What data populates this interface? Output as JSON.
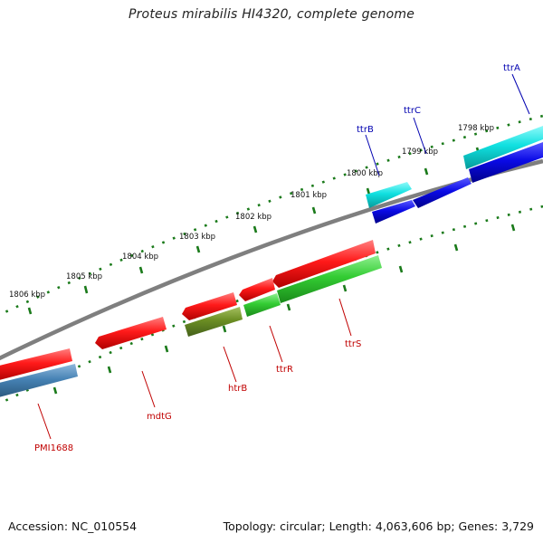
{
  "title": "Proteus mirabilis HI4320, complete genome",
  "accession_text": "Accession: NC_010554",
  "info_text": "Topology: circular; Length: 4,063,606 bp; Genes: 3,729",
  "colors": {
    "backbone": "#7f7f7f",
    "tick": "#1a7a1a",
    "forward_label": "#0000b0",
    "reverse_label": "#c00000",
    "cds_red": "#ff1a1a",
    "cds_blue": "#0a0ae6",
    "cds_cyan": "#10e0e0",
    "cds_green": "#33cc33",
    "cds_olive": "#6b8e23",
    "cds_steel": "#4682b4"
  },
  "scale_labels": [
    "1806 kbp",
    "1805 kbp",
    "1804 kbp",
    "1803 kbp",
    "1802 kbp",
    "1801 kbp",
    "1800 kbp",
    "1799 kbp",
    "1798 kbp"
  ],
  "genes": [
    {
      "label": "ttrA",
      "strand": "forward",
      "color": "cds_cyan"
    },
    {
      "label": "ttrC",
      "strand": "forward",
      "color": "cds_blue"
    },
    {
      "label": "ttrB",
      "strand": "forward",
      "color": "cds_cyan"
    },
    {
      "label": "ttrS",
      "strand": "reverse",
      "color": "cds_green"
    },
    {
      "label": "ttrR",
      "strand": "reverse",
      "color": "cds_green"
    },
    {
      "label": "htrB",
      "strand": "reverse",
      "color": "cds_olive"
    },
    {
      "label": "mdtG",
      "strand": "reverse",
      "color": "cds_red"
    },
    {
      "label": "PMI1688",
      "strand": "reverse",
      "color": "cds_steel"
    }
  ]
}
